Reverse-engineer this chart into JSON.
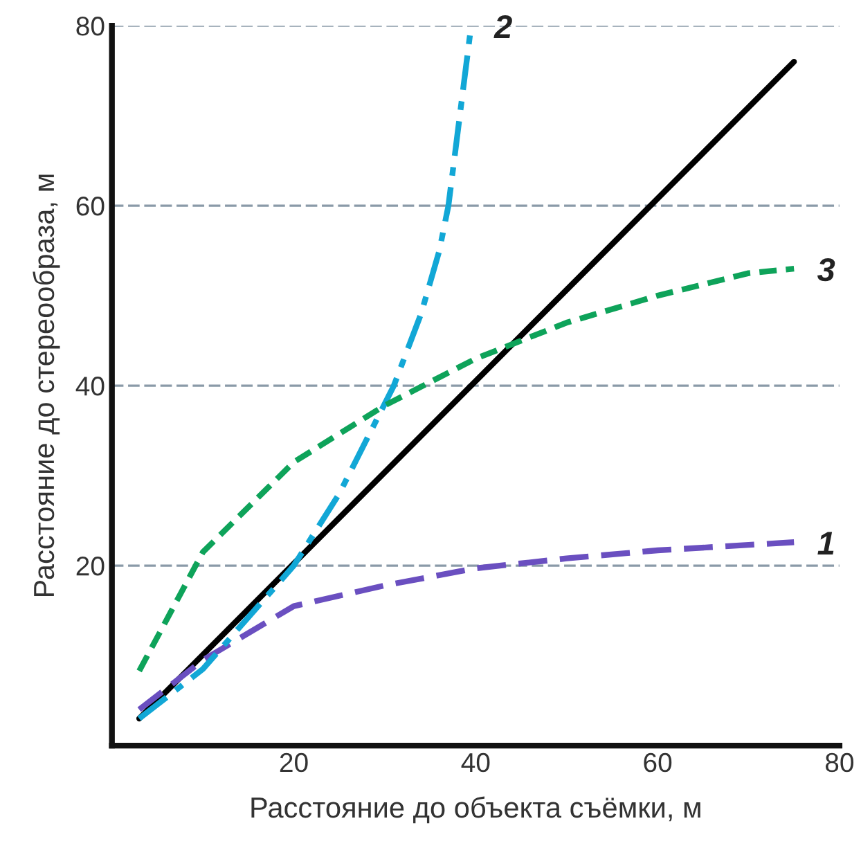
{
  "chart_data": {
    "type": "line",
    "xlabel": "Расстояние до объекта съёмки, м",
    "ylabel": "Расстояние до стереообраза, м",
    "xlim": [
      0,
      80
    ],
    "ylim": [
      0,
      80
    ],
    "xticks": [
      20,
      40,
      60,
      80
    ],
    "yticks": [
      20,
      40,
      60,
      80
    ],
    "grid": "y",
    "marker": "none",
    "series": [
      {
        "color": "#000000",
        "line_style": "solid",
        "x": [
          3,
          75
        ],
        "values": [
          3,
          76
        ]
      },
      {
        "name": "1",
        "color": "#6a4fc0",
        "line_style": "dashed",
        "x": [
          3,
          10,
          20,
          30,
          40,
          50,
          60,
          70,
          75
        ],
        "values": [
          4,
          9.5,
          15.5,
          17.8,
          19.7,
          20.8,
          21.7,
          22.3,
          22.6
        ]
      },
      {
        "name": "2",
        "color": "#12a7d6",
        "line_style": "dashdot",
        "x": [
          3,
          10,
          20,
          25,
          31,
          34,
          36,
          37,
          38,
          39.5
        ],
        "values": [
          3,
          8.5,
          20,
          28,
          40,
          48,
          55,
          60,
          68,
          80
        ]
      },
      {
        "name": "3",
        "color": "#0ea35a",
        "line_style": "dotted",
        "x": [
          3,
          10,
          20,
          30,
          40,
          50,
          60,
          70,
          75
        ],
        "values": [
          8.3,
          21.5,
          31.5,
          37.8,
          43,
          47,
          50,
          52.5,
          53
        ]
      }
    ]
  }
}
